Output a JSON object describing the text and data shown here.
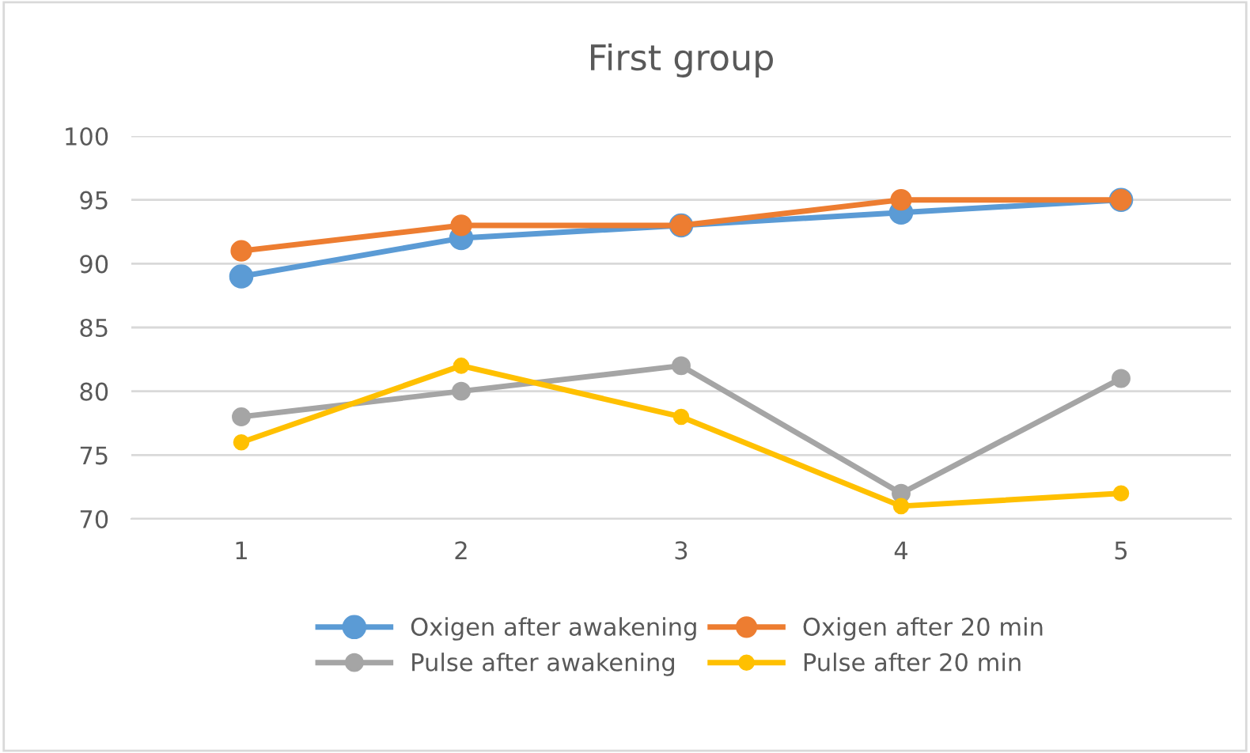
{
  "chart_data": {
    "type": "line",
    "title": "First group",
    "categories": [
      "1",
      "2",
      "3",
      "4",
      "5"
    ],
    "series": [
      {
        "name": "Oxigen after awakening",
        "color": "#5b9bd5",
        "values": [
          89,
          92,
          93,
          94,
          95
        ]
      },
      {
        "name": "Oxigen after 20 min",
        "color": "#ed7d31",
        "values": [
          91,
          93,
          93,
          95,
          95
        ]
      },
      {
        "name": "Pulse after awakening",
        "color": "#a5a5a5",
        "values": [
          78,
          80,
          82,
          72,
          81
        ]
      },
      {
        "name": "Pulse after 20 min",
        "color": "#ffc000",
        "values": [
          76,
          82,
          78,
          71,
          72
        ]
      }
    ],
    "ylim": [
      70,
      100
    ],
    "yticks": [
      70,
      75,
      80,
      85,
      90,
      95,
      100
    ],
    "grid": "y",
    "legend": "bottom",
    "marker": "circle",
    "line_style": "solid"
  }
}
